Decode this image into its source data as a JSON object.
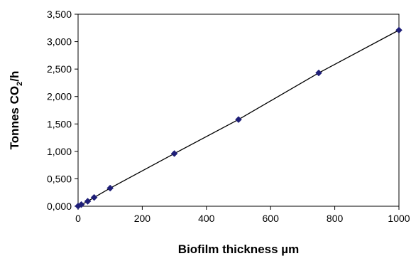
{
  "chart_data": {
    "type": "scatter",
    "title": "",
    "xlabel": "Biofilm thickness µm",
    "ylabel_main": "Tonnes CO",
    "ylabel_sub": "2",
    "ylabel_tail": "/h",
    "xlim": [
      0,
      1000
    ],
    "ylim": [
      0,
      3.5
    ],
    "x_ticks": [
      {
        "value": 0,
        "label": "0"
      },
      {
        "value": 200,
        "label": "200"
      },
      {
        "value": 400,
        "label": "400"
      },
      {
        "value": 600,
        "label": "600"
      },
      {
        "value": 800,
        "label": "800"
      },
      {
        "value": 1000,
        "label": "1000"
      }
    ],
    "y_ticks": [
      {
        "value": 0,
        "label": "0,000"
      },
      {
        "value": 0.5,
        "label": "0,500"
      },
      {
        "value": 1.0,
        "label": "1,000"
      },
      {
        "value": 1.5,
        "label": "1,500"
      },
      {
        "value": 2.0,
        "label": "2,000"
      },
      {
        "value": 2.5,
        "label": "2,500"
      },
      {
        "value": 3.0,
        "label": "3,000"
      },
      {
        "value": 3.5,
        "label": "3,500"
      }
    ],
    "grid": false,
    "legend": "none",
    "series": [
      {
        "marker": "diamond",
        "color": "#1f1f78",
        "line_color": "#000000",
        "x": [
          0,
          10,
          30,
          50,
          100,
          300,
          500,
          750,
          1000
        ],
        "y": [
          0.003,
          0.03,
          0.09,
          0.16,
          0.33,
          0.96,
          1.58,
          2.43,
          3.21
        ]
      }
    ]
  }
}
